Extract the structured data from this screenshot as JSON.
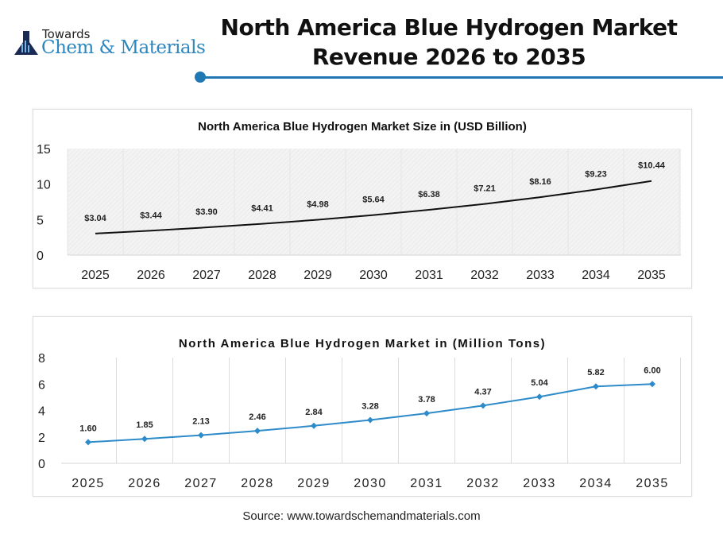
{
  "logo": {
    "line1": "Towards",
    "line2": "Chem & Materials"
  },
  "header": {
    "title_line1": "North America Blue Hydrogen Market",
    "title_line2": "Revenue 2026 to 2035",
    "accent_color": "#1f78b4"
  },
  "source": "Source: www.towardschemandmaterials.com",
  "chart_data": [
    {
      "type": "line",
      "title": "North America Blue Hydrogen Market Size in (USD Billion)",
      "categories": [
        "2025",
        "2026",
        "2027",
        "2028",
        "2029",
        "2030",
        "2031",
        "2032",
        "2033",
        "2034",
        "2035"
      ],
      "values": [
        3.04,
        3.44,
        3.9,
        4.41,
        4.98,
        5.64,
        6.38,
        7.21,
        8.16,
        9.23,
        10.44
      ],
      "data_labels": [
        "$3.04",
        "$3.44",
        "$3.90",
        "$4.41",
        "$4.98",
        "$5.64",
        "$6.38",
        "$7.21",
        "$8.16",
        "$9.23",
        "$10.44"
      ],
      "ylim": [
        0,
        15
      ],
      "yticks": [
        "0",
        "5",
        "10",
        "15"
      ],
      "line_color": "#111111",
      "markers": false,
      "grid": true
    },
    {
      "type": "line",
      "title": "North America Blue Hydrogen Market in (Million Tons)",
      "categories": [
        "2025",
        "2026",
        "2027",
        "2028",
        "2029",
        "2030",
        "2031",
        "2032",
        "2033",
        "2034",
        "2035"
      ],
      "values": [
        1.6,
        1.85,
        2.13,
        2.46,
        2.84,
        3.28,
        3.78,
        4.37,
        5.04,
        5.82,
        6.0
      ],
      "data_labels": [
        "1.60",
        "1.85",
        "2.13",
        "2.46",
        "2.84",
        "3.28",
        "3.78",
        "4.37",
        "5.04",
        "5.82",
        "6.00"
      ],
      "ylim": [
        0,
        8
      ],
      "yticks": [
        "0",
        "2",
        "4",
        "6",
        "8"
      ],
      "line_color": "#2e8bc9",
      "markers": true,
      "grid": true
    }
  ]
}
